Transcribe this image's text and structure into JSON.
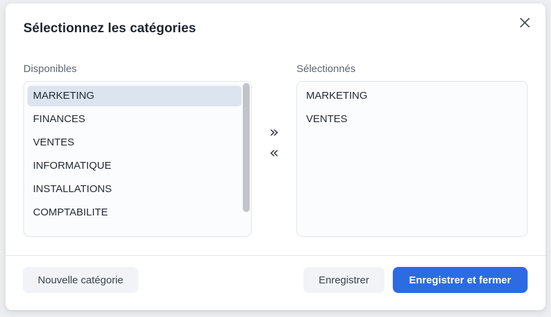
{
  "dialog": {
    "title": "Sélectionnez les catégories"
  },
  "available": {
    "label": "Disponibles",
    "items": [
      "MARKETING",
      "FINANCES",
      "VENTES",
      "INFORMATIQUE",
      "INSTALLATIONS",
      "COMPTABILITE"
    ],
    "selected_index": 0
  },
  "selected": {
    "label": "Sélectionnés",
    "items": [
      "MARKETING",
      "VENTES"
    ]
  },
  "transfer": {
    "move_right_label": "»",
    "move_left_label": "«"
  },
  "footer": {
    "new_category_label": "Nouvelle catégorie",
    "save_label": "Enregistrer",
    "save_and_close_label": "Enregistrer et fermer"
  },
  "icons": {
    "close": "x-icon"
  },
  "colors": {
    "primary_button_bg": "#2d6be3",
    "selected_item_bg": "#dce4ef"
  }
}
